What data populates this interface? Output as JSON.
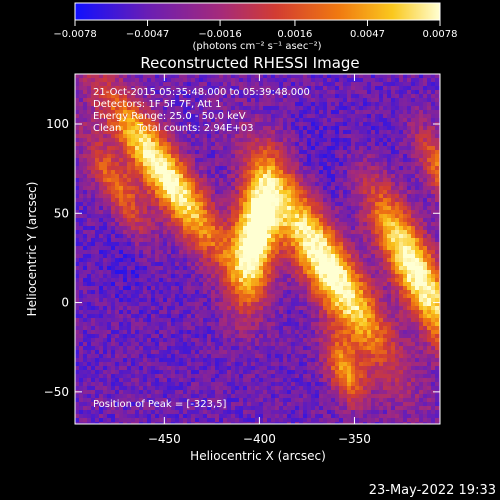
{
  "chart_data": {
    "type": "heatmap",
    "title": "Reconstructed RHESSI Image",
    "xlabel": "Heliocentric X (arcsec)",
    "ylabel": "Heliocentric Y (arcsec)",
    "xlim": [
      -497,
      -305
    ],
    "ylim": [
      -68,
      128
    ],
    "x_ticks": [
      -450,
      -400,
      -350
    ],
    "y_ticks": [
      -50,
      0,
      50,
      100
    ],
    "x_tick_labels": [
      "−450",
      "−400",
      "−350"
    ],
    "y_tick_labels": [
      "−50",
      "0",
      "50",
      "100"
    ],
    "colorbar": {
      "vmin": -0.0078,
      "vmax": 0.0078,
      "tick_values": [
        -0.0078,
        -0.0047,
        -0.0016,
        0.0016,
        0.0047,
        0.0078
      ],
      "tick_labels": [
        "−0.0078",
        "−0.0047",
        "−0.0016",
        "0.0016",
        "0.0047",
        "0.0078"
      ],
      "unit_label": "(photons cm⁻² s⁻¹ asec⁻²)",
      "colormap": [
        "#1010ff",
        "#6a1eb4",
        "#a52a7a",
        "#d23c32",
        "#f07810",
        "#fac81e",
        "#ffffd2"
      ]
    },
    "blobs": [
      {
        "x": -402,
        "y": 38,
        "sx": 8,
        "sy": 25,
        "angle": 8,
        "amp": 1.0
      },
      {
        "x": -450,
        "y": 72,
        "sx": 8,
        "sy": 38,
        "angle": -33,
        "amp": 0.88
      },
      {
        "x": -475,
        "y": 65,
        "sx": 6,
        "sy": 22,
        "angle": -28,
        "amp": 0.45
      },
      {
        "x": -364,
        "y": 20,
        "sx": 9,
        "sy": 42,
        "angle": -30,
        "amp": 0.92
      },
      {
        "x": -318,
        "y": 18,
        "sx": 8,
        "sy": 35,
        "angle": -25,
        "amp": 0.9
      },
      {
        "x": -355,
        "y": -38,
        "sx": 6,
        "sy": 14,
        "angle": -20,
        "amp": 0.55
      },
      {
        "x": -305,
        "y": 75,
        "sx": 6,
        "sy": 18,
        "angle": -25,
        "amp": 0.45
      }
    ],
    "annotations": {
      "time": "21-Oct-2015 05:35:48.000 to 05:39:48.000",
      "detectors": "Detectors: 1F 5F 7F, Att 1",
      "energy": "Energy Range: 25.0 - 50.0 keV",
      "clean": "Clean     Total counts: 2.94E+03",
      "peak": "Position of Peak = [-323,5]"
    },
    "footer": "23-May-2022 19:33"
  }
}
